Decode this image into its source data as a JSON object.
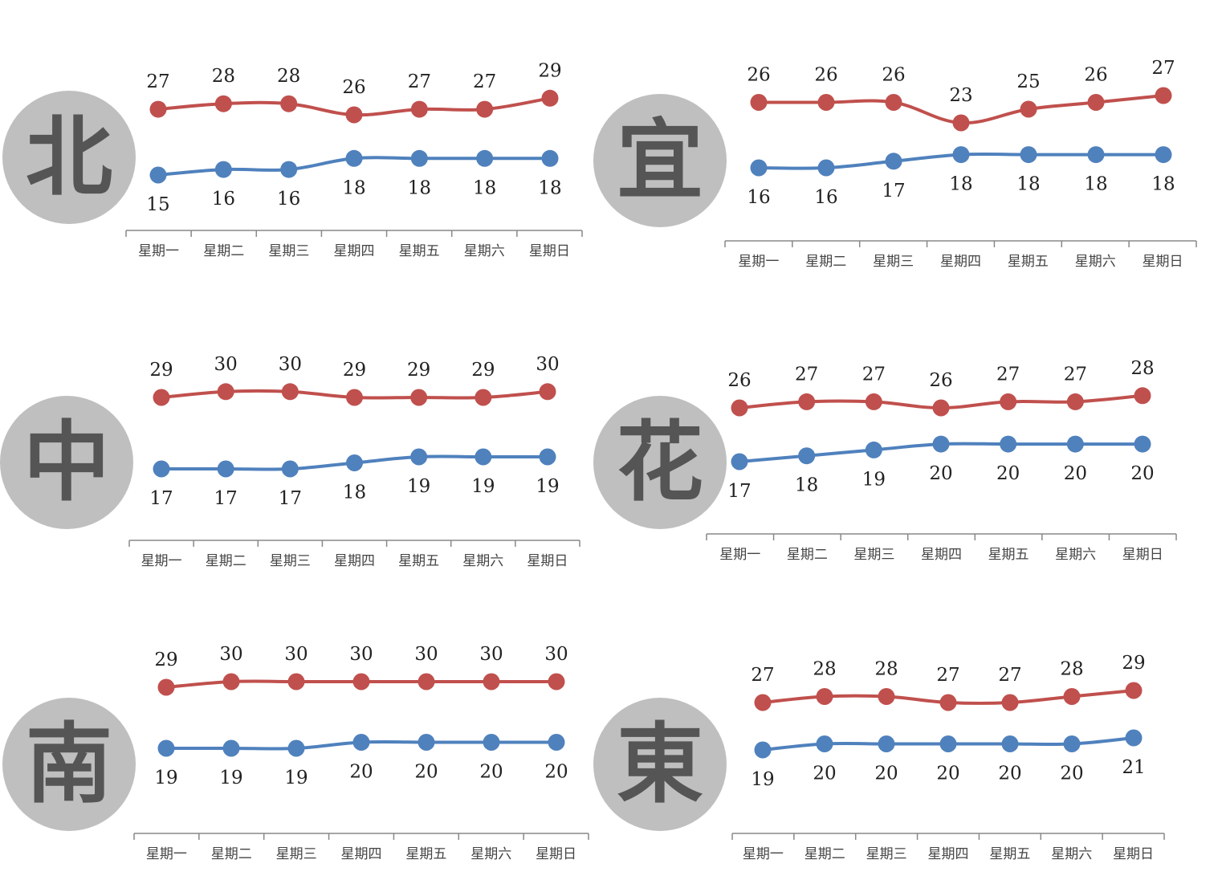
{
  "colors": {
    "high": "#C0504D",
    "low": "#4F81BD",
    "axis": "#888888",
    "badge_fill": "#BFBFBF",
    "badge_text": "#555555"
  },
  "chart_data": [
    {
      "type": "line",
      "region": "北",
      "categories": [
        "星期一",
        "星期二",
        "星期三",
        "星期四",
        "星期五",
        "星期六",
        "星期日"
      ],
      "series": [
        {
          "values": [
            27,
            28,
            28,
            26,
            27,
            27,
            29
          ],
          "color": "#C0504D"
        },
        {
          "values": [
            15,
            16,
            16,
            18,
            18,
            18,
            18
          ],
          "color": "#4F81BD"
        }
      ]
    },
    {
      "type": "line",
      "region": "宜",
      "categories": [
        "星期一",
        "星期二",
        "星期三",
        "星期四",
        "星期五",
        "星期六",
        "星期日"
      ],
      "series": [
        {
          "values": [
            26,
            26,
            26,
            23,
            25,
            26,
            27
          ],
          "color": "#C0504D"
        },
        {
          "values": [
            16,
            16,
            17,
            18,
            18,
            18,
            18
          ],
          "color": "#4F81BD"
        }
      ]
    },
    {
      "type": "line",
      "region": "中",
      "categories": [
        "星期一",
        "星期二",
        "星期三",
        "星期四",
        "星期五",
        "星期六",
        "星期日"
      ],
      "series": [
        {
          "values": [
            29,
            30,
            30,
            29,
            29,
            29,
            30
          ],
          "color": "#C0504D"
        },
        {
          "values": [
            17,
            17,
            17,
            18,
            19,
            19,
            19
          ],
          "color": "#4F81BD"
        }
      ]
    },
    {
      "type": "line",
      "region": "花",
      "categories": [
        "星期一",
        "星期二",
        "星期三",
        "星期四",
        "星期五",
        "星期六",
        "星期日"
      ],
      "series": [
        {
          "values": [
            26,
            27,
            27,
            26,
            27,
            27,
            28
          ],
          "color": "#C0504D"
        },
        {
          "values": [
            17,
            18,
            19,
            20,
            20,
            20,
            20
          ],
          "color": "#4F81BD"
        }
      ]
    },
    {
      "type": "line",
      "region": "南",
      "categories": [
        "星期一",
        "星期二",
        "星期三",
        "星期四",
        "星期五",
        "星期六",
        "星期日"
      ],
      "series": [
        {
          "values": [
            29,
            30,
            30,
            30,
            30,
            30,
            30
          ],
          "color": "#C0504D"
        },
        {
          "values": [
            19,
            19,
            19,
            20,
            20,
            20,
            20
          ],
          "color": "#4F81BD"
        }
      ]
    },
    {
      "type": "line",
      "region": "東",
      "categories": [
        "星期一",
        "星期二",
        "星期三",
        "星期四",
        "星期五",
        "星期六",
        "星期日"
      ],
      "series": [
        {
          "values": [
            27,
            28,
            28,
            27,
            27,
            28,
            29
          ],
          "color": "#C0504D"
        },
        {
          "values": [
            19,
            20,
            20,
            20,
            20,
            20,
            21
          ],
          "color": "#4F81BD"
        }
      ]
    }
  ]
}
